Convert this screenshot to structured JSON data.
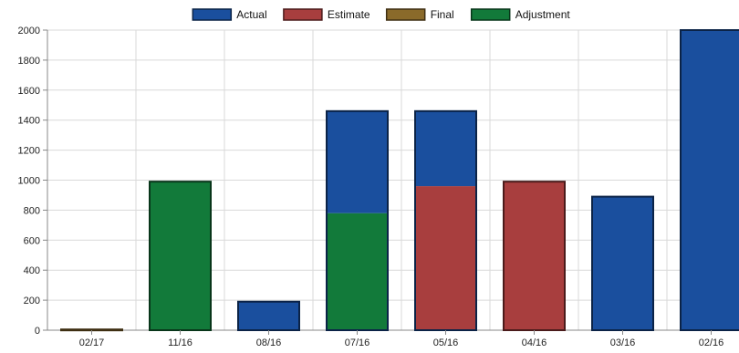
{
  "chart_data": {
    "type": "bar",
    "stacked": true,
    "categories": [
      "02/17",
      "11/16",
      "08/16",
      "07/16",
      "05/16",
      "04/16",
      "03/16",
      "02/16"
    ],
    "series": [
      {
        "name": "Actual",
        "color": "#1a4f9e",
        "values": [
          0,
          0,
          190,
          680,
          500,
          0,
          890,
          2000
        ]
      },
      {
        "name": "Estimate",
        "color": "#a83e3e",
        "values": [
          0,
          0,
          0,
          0,
          960,
          990,
          0,
          0
        ]
      },
      {
        "name": "Final",
        "color": "#8a6a2a",
        "values": [
          5,
          0,
          0,
          0,
          0,
          0,
          0,
          0
        ]
      },
      {
        "name": "Adjustment",
        "color": "#127a3a",
        "values": [
          0,
          990,
          0,
          780,
          0,
          0,
          0,
          0
        ]
      }
    ],
    "stack_order": [
      "Adjustment",
      "Estimate",
      "Final",
      "Actual"
    ],
    "ylim": [
      0,
      2000
    ],
    "yticks": [
      0,
      200,
      400,
      600,
      800,
      1000,
      1200,
      1400,
      1600,
      1800,
      2000
    ],
    "grid": true,
    "legend": "top-center",
    "title": "",
    "xlabel": "",
    "ylabel": ""
  }
}
